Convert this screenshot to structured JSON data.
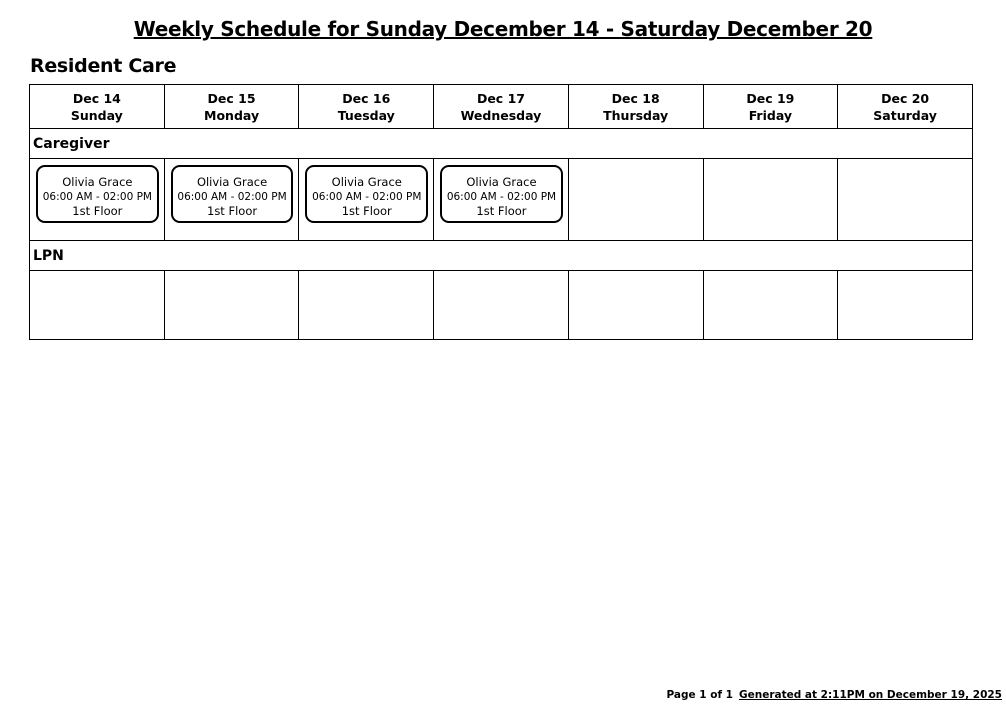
{
  "header": {
    "title": "Weekly Schedule for Sunday December 14 - Saturday December 20"
  },
  "section": {
    "title": "Resident Care"
  },
  "table": {
    "days": [
      {
        "date": "Dec 14",
        "weekday": "Sunday"
      },
      {
        "date": "Dec 15",
        "weekday": "Monday"
      },
      {
        "date": "Dec 16",
        "weekday": "Tuesday"
      },
      {
        "date": "Dec 17",
        "weekday": "Wednesday"
      },
      {
        "date": "Dec 18",
        "weekday": "Thursday"
      },
      {
        "date": "Dec 19",
        "weekday": "Friday"
      },
      {
        "date": "Dec 20",
        "weekday": "Saturday"
      }
    ],
    "groups": [
      {
        "name": "Caregiver",
        "cells": [
          [
            {
              "name": "Olivia Grace",
              "time": "06:00 AM - 02:00 PM",
              "location": "1st Floor"
            }
          ],
          [
            {
              "name": "Olivia Grace",
              "time": "06:00 AM - 02:00 PM",
              "location": "1st Floor"
            }
          ],
          [
            {
              "name": "Olivia Grace",
              "time": "06:00 AM - 02:00 PM",
              "location": "1st Floor"
            }
          ],
          [
            {
              "name": "Olivia Grace",
              "time": "06:00 AM - 02:00 PM",
              "location": "1st Floor"
            }
          ],
          [],
          [],
          []
        ]
      },
      {
        "name": "LPN",
        "cells": [
          [],
          [],
          [],
          [],
          [],
          [],
          []
        ]
      }
    ]
  },
  "footer": {
    "page": "Page 1 of 1",
    "generated": "Generated at 2:11PM on December 19, 2025"
  }
}
